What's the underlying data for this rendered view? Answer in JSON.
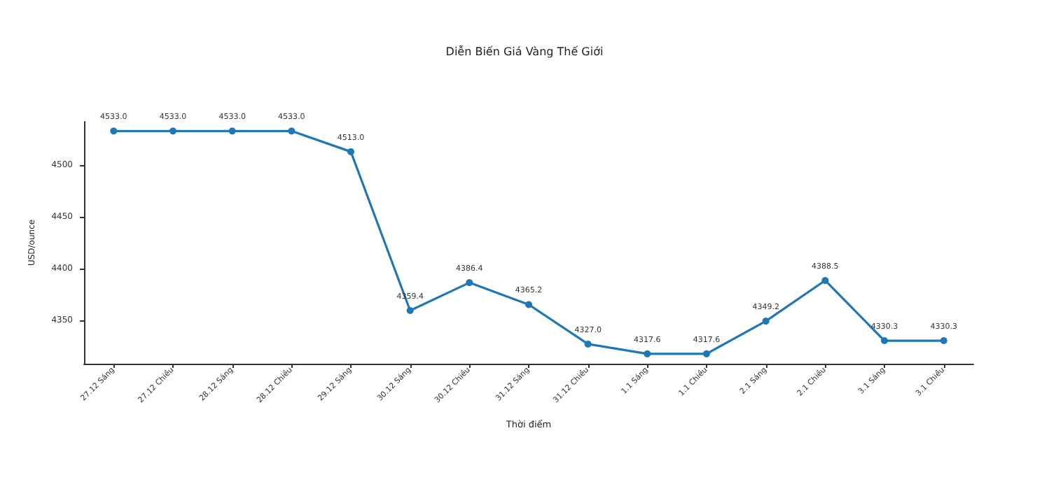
{
  "chart_data": {
    "type": "line",
    "title": "Diễn Biến Giá Vàng Thế Giới",
    "xlabel": "Thời điểm",
    "ylabel": "USD/ounce",
    "categories": [
      "27.12 Sáng",
      "27.12 Chiều",
      "28.12 Sáng",
      "28.12 Chiều",
      "29.12 Sáng",
      "30.12 Sáng",
      "30.12 Chiều",
      "31.12 Sáng",
      "31.12 Chiều",
      "1.1 Sáng",
      "1.1 Chiều",
      "2.1 Sáng",
      "2.1 Chiều",
      "3.1 Sáng",
      "3.1 Chiều"
    ],
    "series": [
      {
        "color": "#1f77b4",
        "values": [
          4533.0,
          4533.0,
          4533.0,
          4533.0,
          4513.0,
          4359.4,
          4386.4,
          4365.2,
          4327.0,
          4317.6,
          4317.6,
          4349.2,
          4388.5,
          4330.3,
          4330.3
        ],
        "value_labels": [
          "4533.0",
          "4533.0",
          "4533.0",
          "4533.0",
          "4513.0",
          "4359.4",
          "4386.4",
          "4365.2",
          "4327.0",
          "4317.6",
          "4317.6",
          "4349.2",
          "4388.5",
          "4330.3",
          "4330.3"
        ]
      }
    ],
    "ylim": [
      4308,
      4542
    ],
    "yticks": [
      4350,
      4400,
      4450,
      4500
    ],
    "grid": false,
    "marker": "circle",
    "line_style": "solid"
  }
}
